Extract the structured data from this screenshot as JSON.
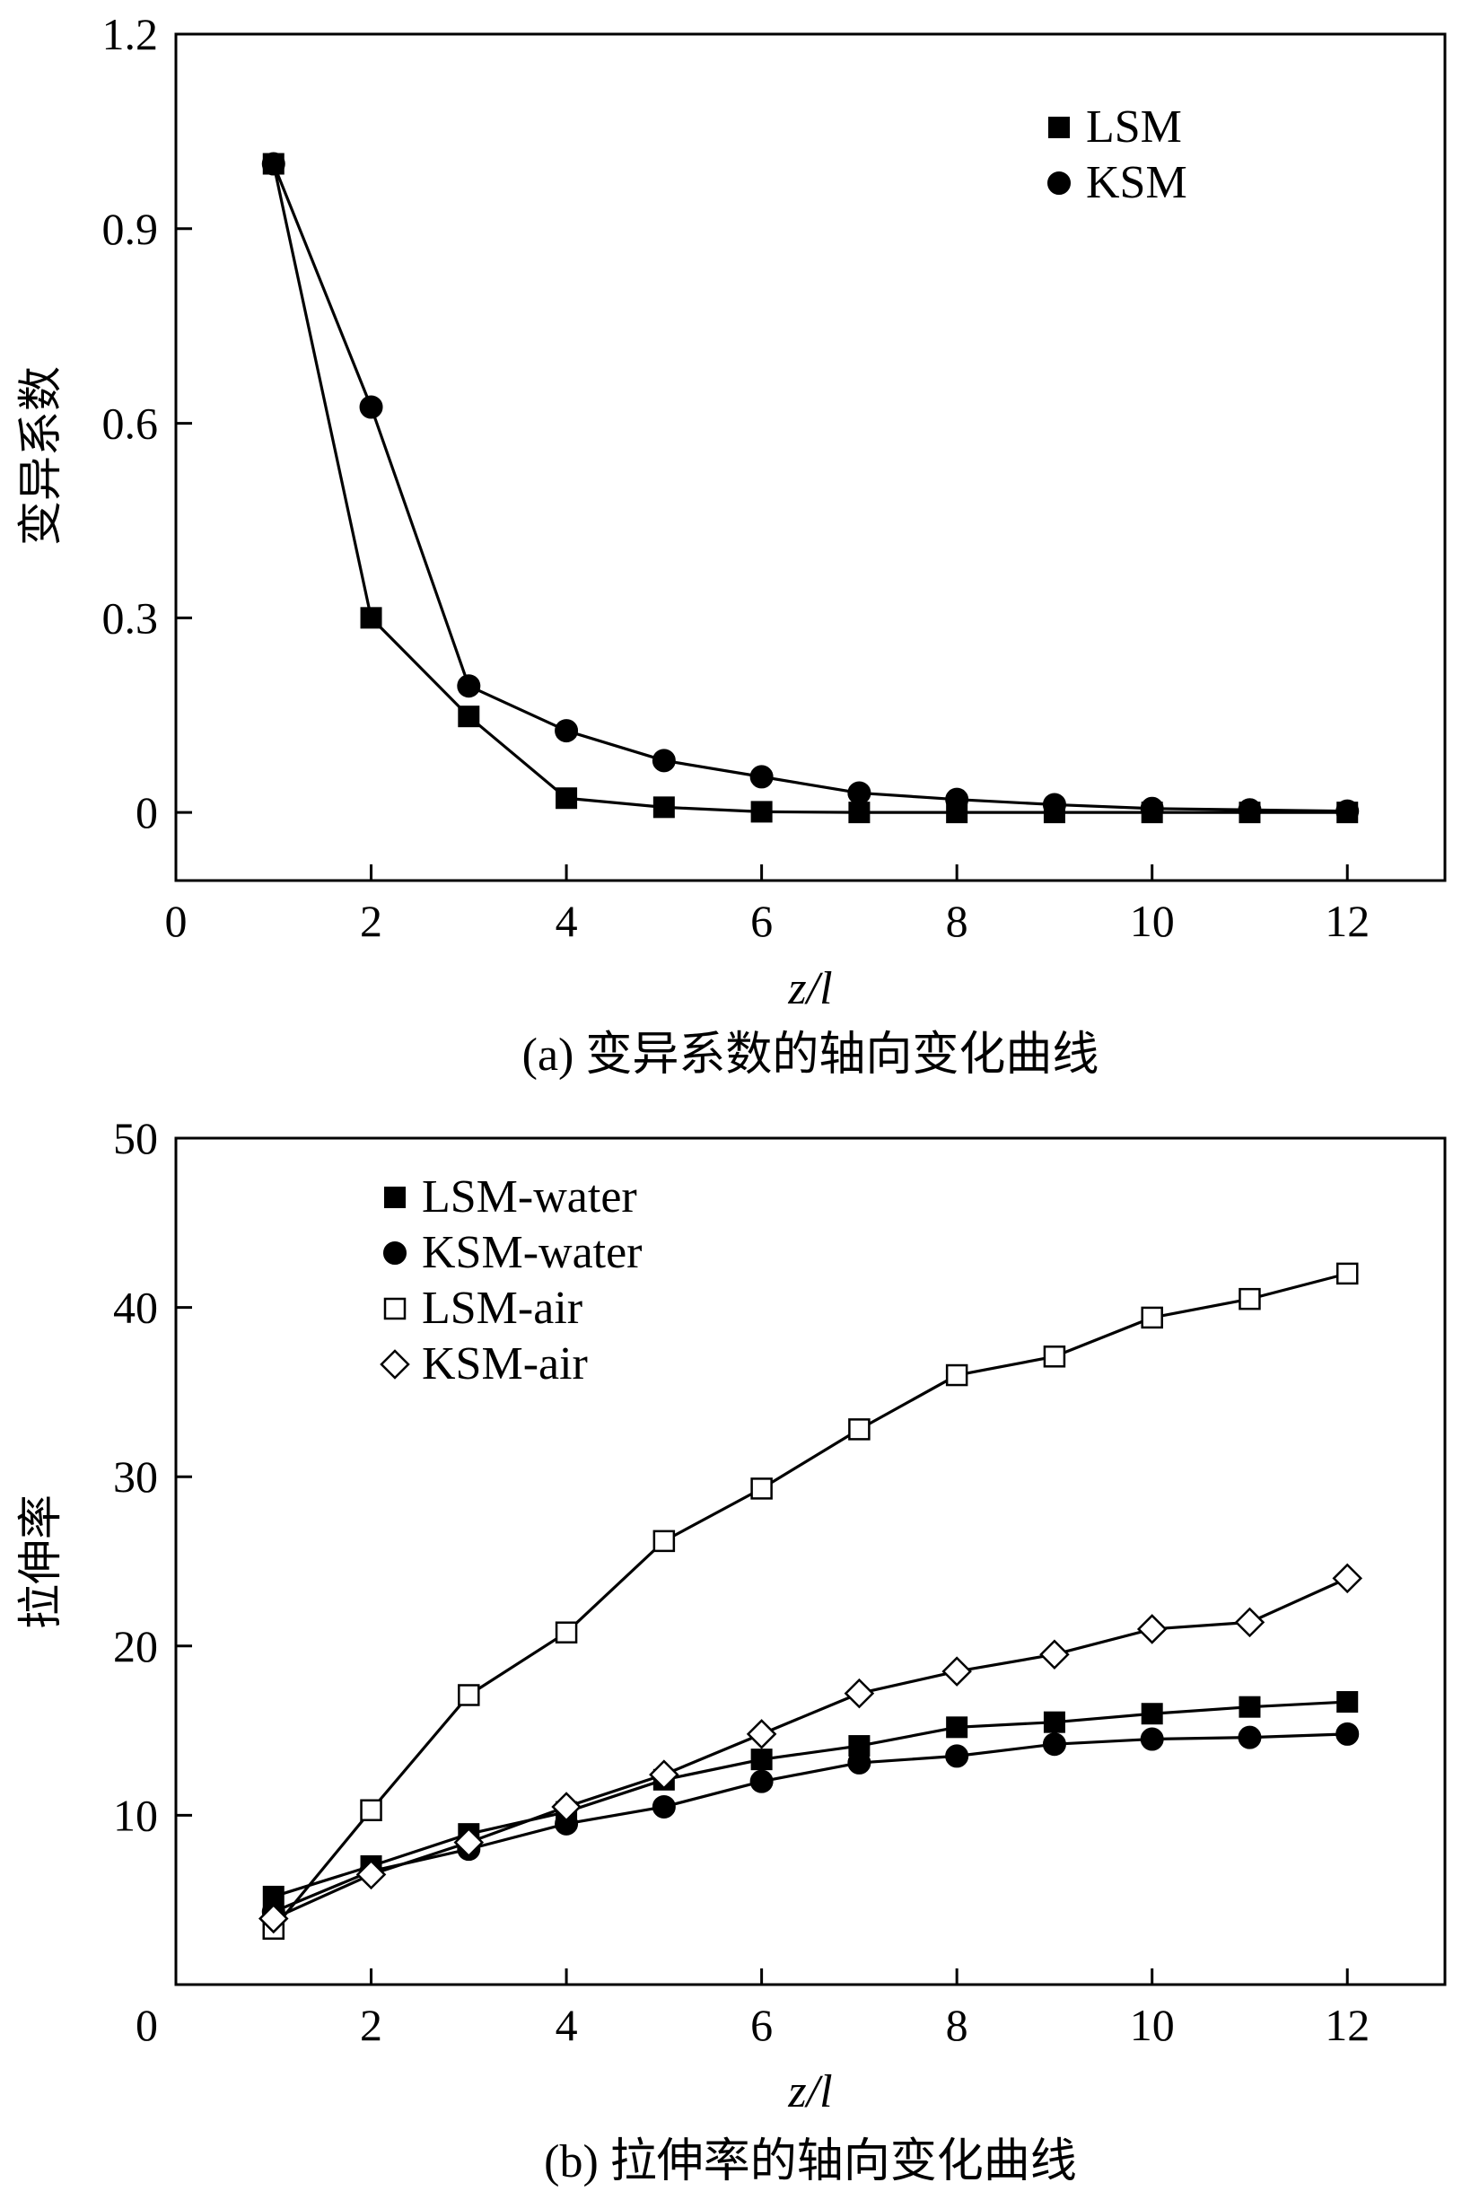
{
  "chart_data": [
    {
      "type": "line",
      "id": "a",
      "caption": "(a) 变异系数的轴向变化曲线",
      "xlabel": "z/l",
      "ylabel": "变异系数",
      "xlim": [
        0,
        13
      ],
      "ylim": [
        -0.105,
        1.2
      ],
      "xticks": [
        0,
        2,
        4,
        6,
        8,
        10,
        12
      ],
      "xtick_labels": [
        "0",
        "2",
        "4",
        "6",
        "8",
        "10",
        "12"
      ],
      "yticks": [
        0,
        0.3,
        0.6,
        0.9,
        1.2
      ],
      "ytick_labels": [
        "0",
        "0.3",
        "0.6",
        "0.9",
        "1.2"
      ],
      "legend_position": "top-right",
      "x": [
        1,
        2,
        3,
        4,
        5,
        6,
        7,
        8,
        9,
        10,
        11,
        12
      ],
      "series": [
        {
          "name": "LSM",
          "marker": "filled-square",
          "values": [
            1.0,
            0.3,
            0.148,
            0.022,
            0.008,
            0.001,
            0.0,
            0.0,
            0.0,
            0.0,
            0.0,
            0.0
          ]
        },
        {
          "name": "KSM",
          "marker": "filled-circle",
          "values": [
            1.0,
            0.625,
            0.195,
            0.126,
            0.08,
            0.055,
            0.03,
            0.02,
            0.012,
            0.006,
            0.004,
            0.002
          ]
        }
      ]
    },
    {
      "type": "line",
      "id": "b",
      "caption": "(b) 拉伸率的轴向变化曲线",
      "xlabel": "z/l",
      "ylabel": "拉伸率",
      "xlim": [
        0,
        13
      ],
      "ylim": [
        0,
        50
      ],
      "xticks": [
        0,
        2,
        4,
        6,
        8,
        10,
        12
      ],
      "xtick_labels": [
        "0",
        "2",
        "4",
        "6",
        "8",
        "10",
        "12"
      ],
      "yticks": [
        10,
        20,
        30,
        40,
        50
      ],
      "ytick_labels": [
        "10",
        "20",
        "30",
        "40",
        "50"
      ],
      "legend_position": "top-left",
      "x": [
        1,
        2,
        3,
        4,
        5,
        6,
        7,
        8,
        9,
        10,
        11,
        12
      ],
      "series": [
        {
          "name": "LSM-water",
          "marker": "filled-square",
          "values": [
            5.2,
            7.0,
            8.9,
            10.2,
            12.1,
            13.3,
            14.1,
            15.2,
            15.5,
            16.0,
            16.4,
            16.7
          ]
        },
        {
          "name": "KSM-water",
          "marker": "filled-circle",
          "values": [
            4.3,
            6.7,
            8.0,
            9.5,
            10.5,
            12.0,
            13.1,
            13.5,
            14.2,
            14.5,
            14.6,
            14.8
          ]
        },
        {
          "name": "LSM-air",
          "marker": "open-square",
          "values": [
            3.3,
            10.3,
            17.1,
            20.8,
            26.2,
            29.3,
            32.8,
            36.0,
            37.1,
            39.4,
            40.5,
            42.0
          ]
        },
        {
          "name": "KSM-air",
          "marker": "open-diamond",
          "values": [
            3.9,
            6.5,
            8.4,
            10.5,
            12.4,
            14.8,
            17.2,
            18.5,
            19.5,
            21.0,
            21.4,
            24.0
          ]
        }
      ]
    }
  ]
}
